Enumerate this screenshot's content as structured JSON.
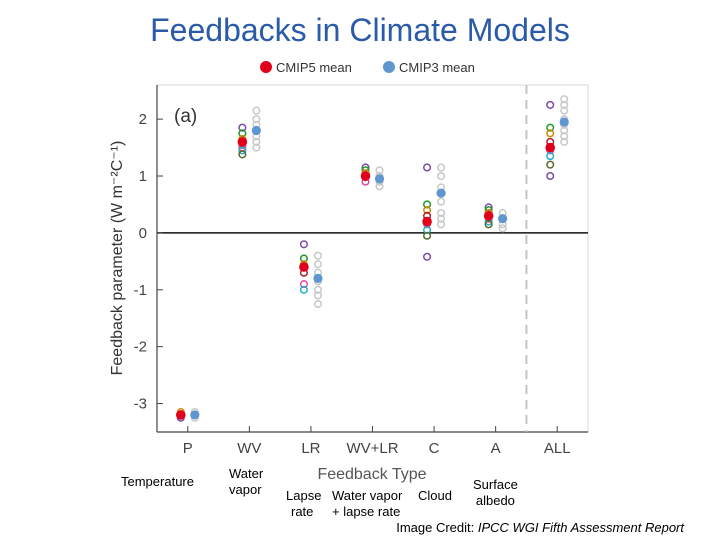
{
  "page": {
    "title": "Feedbacks in Climate Models",
    "notes": {
      "temperature": "Temperature",
      "water_vapor": [
        "Water",
        "vapor"
      ],
      "lapse_rate": [
        "Lapse",
        "rate"
      ],
      "wv_lapse": [
        "Water vapor",
        "+ lapse rate"
      ],
      "cloud": "Cloud",
      "albedo": [
        "Surface",
        "albedo"
      ]
    },
    "credit_prefix": "Image Credit: ",
    "credit_source": "IPCC WGI Fifth Assessment Report"
  },
  "chart_data": {
    "type": "scatter",
    "panel_label": "(a)",
    "xlabel": "Feedback Type",
    "ylabel": "Feedback parameter (W m⁻²C⁻¹)",
    "categories": [
      "P",
      "WV",
      "LR",
      "WV+LR",
      "C",
      "A",
      "ALL"
    ],
    "ylim": [
      -3.5,
      2.6
    ],
    "yticks": [
      -3,
      -2,
      -1,
      0,
      1,
      2
    ],
    "grid": false,
    "legend_position": "top-center",
    "colors": {
      "cmip5_mean": "#e0001b",
      "cmip3_mean": "#5f96d0",
      "cmip3_models": "#c8c8c8",
      "cmip5_models": [
        "#7b4aa8",
        "#1e9a2a",
        "#d08a00",
        "#b0202a",
        "#e04ca0",
        "#20b0c8",
        "#556b2f"
      ]
    },
    "legend": [
      {
        "name": "CMIP5 mean",
        "color": "#e0001b"
      },
      {
        "name": "CMIP3 mean",
        "color": "#5f96d0"
      }
    ],
    "series": [
      {
        "name": "CMIP5 mean",
        "values": [
          -3.2,
          1.6,
          -0.6,
          1.0,
          0.2,
          0.3,
          1.5
        ]
      },
      {
        "name": "CMIP3 mean",
        "values": [
          -3.2,
          1.8,
          -0.8,
          0.95,
          0.7,
          0.25,
          1.95
        ]
      },
      {
        "name": "CMIP5 models",
        "values": [
          [
            -3.25,
            -3.2,
            -3.15
          ],
          [
            1.85,
            1.75,
            1.65,
            1.55,
            1.5,
            1.45,
            1.38
          ],
          [
            -0.2,
            -0.45,
            -0.55,
            -0.7,
            -0.9,
            -1.0
          ],
          [
            1.15,
            1.1,
            1.05,
            0.98,
            0.9
          ],
          [
            1.15,
            0.5,
            0.4,
            0.3,
            0.15,
            0.05,
            -0.05,
            -0.42
          ],
          [
            0.45,
            0.4,
            0.35,
            0.3,
            0.25,
            0.2,
            0.15
          ],
          [
            2.25,
            1.85,
            1.75,
            1.6,
            1.45,
            1.35,
            1.2,
            1.0
          ]
        ]
      },
      {
        "name": "CMIP3 models",
        "values": [
          [
            -3.25,
            -3.2,
            -3.15
          ],
          [
            2.15,
            2.0,
            1.9,
            1.8,
            1.7,
            1.6,
            1.5
          ],
          [
            -0.4,
            -0.55,
            -0.7,
            -0.85,
            -1.0,
            -1.1,
            -1.25
          ],
          [
            1.1,
            1.0,
            0.9,
            0.82
          ],
          [
            1.15,
            1.0,
            0.8,
            0.55,
            0.35,
            0.25,
            0.15
          ],
          [
            0.35,
            0.25,
            0.15,
            0.08
          ],
          [
            2.35,
            2.25,
            2.15,
            2.0,
            1.9,
            1.8,
            1.7,
            1.6
          ]
        ]
      }
    ]
  }
}
